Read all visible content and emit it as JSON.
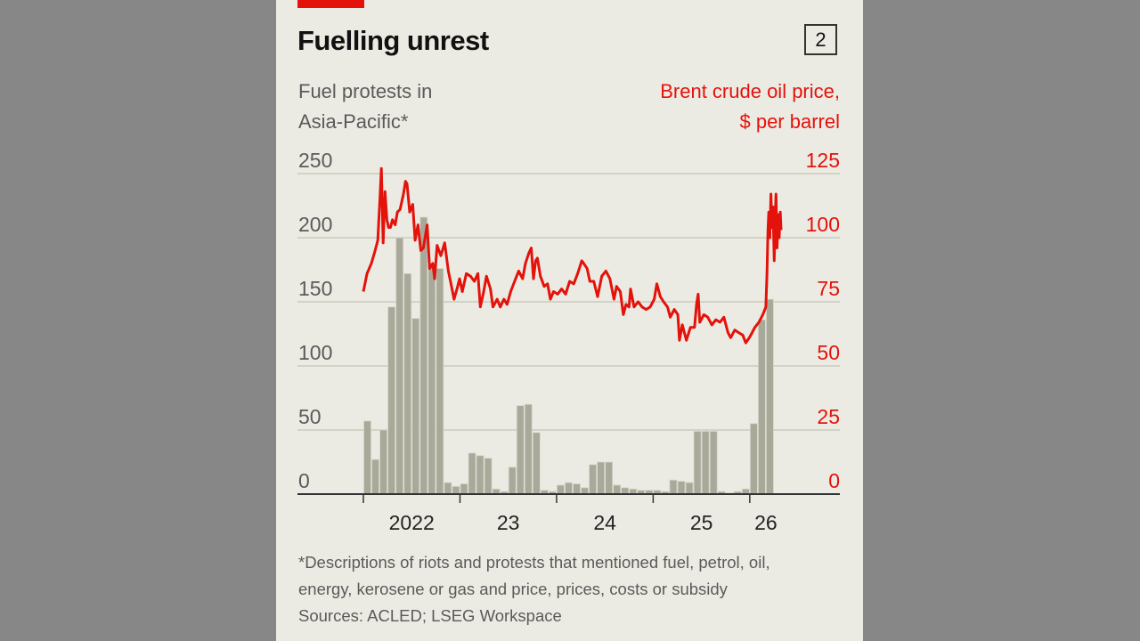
{
  "badge": "2",
  "colors": {
    "accent": "#e3120b",
    "bars": "#a9a99a",
    "bar_outline": "#d6d6cc",
    "grid": "#c9c9c0",
    "axis": "#333333",
    "background": "#ecebe3"
  },
  "chart_data": {
    "type": "bar+line",
    "title": "Fuelling unrest",
    "left_axis_label": [
      "Fuel protests in",
      "Asia-Pacific*"
    ],
    "right_axis_label": [
      "Brent crude oil price,",
      "$ per barrel"
    ],
    "left_ticks": [
      "250",
      "200",
      "150",
      "100",
      "50",
      "0"
    ],
    "right_ticks": [
      "125",
      "100",
      "75",
      "50",
      "25",
      "0"
    ],
    "left_ylim": [
      0,
      250
    ],
    "right_ylim": [
      0,
      125
    ],
    "x_ticks": [
      "2022",
      "23",
      "24",
      "25",
      "26"
    ],
    "x_range": [
      "2022-01",
      "2026-05"
    ],
    "grid": true,
    "series": [
      {
        "name": "Fuel protests in Asia-Pacific*",
        "axis": "left",
        "type": "bar",
        "color": "#a9a99a",
        "x": [
          "2022-01",
          "2022-02",
          "2022-03",
          "2022-04",
          "2022-05",
          "2022-06",
          "2022-07",
          "2022-08",
          "2022-09",
          "2022-10",
          "2022-11",
          "2022-12",
          "2023-01",
          "2023-02",
          "2023-03",
          "2023-04",
          "2023-05",
          "2023-06",
          "2023-07",
          "2023-08",
          "2023-09",
          "2023-10",
          "2023-11",
          "2023-12",
          "2024-01",
          "2024-02",
          "2024-03",
          "2024-04",
          "2024-05",
          "2024-06",
          "2024-07",
          "2024-08",
          "2024-09",
          "2024-10",
          "2024-11",
          "2024-12",
          "2025-01",
          "2025-02",
          "2025-03",
          "2025-04",
          "2025-05",
          "2025-06",
          "2025-07",
          "2025-08",
          "2025-09",
          "2025-10",
          "2025-11",
          "2025-12",
          "2026-01",
          "2026-02",
          "2026-03",
          "2026-04"
        ],
        "values": [
          57,
          27,
          50,
          146,
          200,
          172,
          137,
          216,
          178,
          176,
          9,
          6,
          8,
          32,
          30,
          28,
          4,
          2,
          21,
          69,
          70,
          48,
          3,
          2,
          7,
          9,
          8,
          5,
          23,
          25,
          25,
          7,
          5,
          4,
          3,
          3,
          3,
          2,
          11,
          10,
          9,
          49,
          49,
          49,
          2,
          1,
          2,
          4,
          55,
          136,
          152,
          0
        ]
      },
      {
        "name": "Brent crude oil price, $ per barrel",
        "axis": "right",
        "type": "line",
        "color": "#e3120b",
        "points": [
          [
            "2022-01-01",
            79
          ],
          [
            "2022-01-15",
            86
          ],
          [
            "2022-02-01",
            90
          ],
          [
            "2022-02-15",
            95
          ],
          [
            "2022-02-25",
            99
          ],
          [
            "2022-03-04",
            118
          ],
          [
            "2022-03-08",
            127
          ],
          [
            "2022-03-15",
            98
          ],
          [
            "2022-03-22",
            118
          ],
          [
            "2022-03-29",
            107
          ],
          [
            "2022-04-05",
            104
          ],
          [
            "2022-04-12",
            104
          ],
          [
            "2022-04-20",
            107
          ],
          [
            "2022-04-30",
            105
          ],
          [
            "2022-05-08",
            110
          ],
          [
            "2022-05-18",
            111
          ],
          [
            "2022-05-31",
            117
          ],
          [
            "2022-06-08",
            122
          ],
          [
            "2022-06-14",
            121
          ],
          [
            "2022-06-24",
            110
          ],
          [
            "2022-07-05",
            113
          ],
          [
            "2022-07-14",
            99
          ],
          [
            "2022-07-25",
            105
          ],
          [
            "2022-08-05",
            95
          ],
          [
            "2022-08-15",
            96
          ],
          [
            "2022-08-29",
            105
          ],
          [
            "2022-09-08",
            88
          ],
          [
            "2022-09-20",
            90
          ],
          [
            "2022-09-27",
            84
          ],
          [
            "2022-10-06",
            97
          ],
          [
            "2022-10-20",
            93
          ],
          [
            "2022-11-04",
            98
          ],
          [
            "2022-11-18",
            87
          ],
          [
            "2022-11-28",
            82
          ],
          [
            "2022-12-09",
            76
          ],
          [
            "2022-12-20",
            80
          ],
          [
            "2022-12-30",
            84
          ],
          [
            "2023-01-10",
            79
          ],
          [
            "2023-01-25",
            86
          ],
          [
            "2023-02-10",
            85
          ],
          [
            "2023-02-25",
            83
          ],
          [
            "2023-03-08",
            86
          ],
          [
            "2023-03-17",
            73
          ],
          [
            "2023-03-30",
            79
          ],
          [
            "2023-04-10",
            85
          ],
          [
            "2023-04-25",
            80
          ],
          [
            "2023-05-04",
            73
          ],
          [
            "2023-05-20",
            76
          ],
          [
            "2023-06-01",
            73
          ],
          [
            "2023-06-15",
            76
          ],
          [
            "2023-06-27",
            74
          ],
          [
            "2023-07-10",
            79
          ],
          [
            "2023-07-25",
            83
          ],
          [
            "2023-08-10",
            87
          ],
          [
            "2023-08-25",
            84
          ],
          [
            "2023-09-05",
            90
          ],
          [
            "2023-09-18",
            94
          ],
          [
            "2023-09-27",
            96
          ],
          [
            "2023-10-05",
            84
          ],
          [
            "2023-10-13",
            91
          ],
          [
            "2023-10-20",
            92
          ],
          [
            "2023-11-01",
            85
          ],
          [
            "2023-11-15",
            81
          ],
          [
            "2023-11-28",
            82
          ],
          [
            "2023-12-08",
            76
          ],
          [
            "2023-12-20",
            79
          ],
          [
            "2024-01-05",
            78
          ],
          [
            "2024-01-20",
            80
          ],
          [
            "2024-02-05",
            78
          ],
          [
            "2024-02-20",
            83
          ],
          [
            "2024-03-05",
            82
          ],
          [
            "2024-03-20",
            86
          ],
          [
            "2024-04-05",
            91
          ],
          [
            "2024-04-12",
            90
          ],
          [
            "2024-04-25",
            88
          ],
          [
            "2024-05-05",
            83
          ],
          [
            "2024-05-20",
            83
          ],
          [
            "2024-06-04",
            77
          ],
          [
            "2024-06-20",
            85
          ],
          [
            "2024-07-05",
            87
          ],
          [
            "2024-07-20",
            84
          ],
          [
            "2024-08-05",
            76
          ],
          [
            "2024-08-15",
            81
          ],
          [
            "2024-08-29",
            79
          ],
          [
            "2024-09-10",
            70
          ],
          [
            "2024-09-20",
            74
          ],
          [
            "2024-10-01",
            73
          ],
          [
            "2024-10-07",
            80
          ],
          [
            "2024-10-20",
            73
          ],
          [
            "2024-11-05",
            75
          ],
          [
            "2024-11-20",
            73
          ],
          [
            "2024-12-05",
            72
          ],
          [
            "2024-12-20",
            73
          ],
          [
            "2025-01-05",
            76
          ],
          [
            "2025-01-15",
            82
          ],
          [
            "2025-01-28",
            77
          ],
          [
            "2025-02-10",
            75
          ],
          [
            "2025-02-25",
            73
          ],
          [
            "2025-03-05",
            69
          ],
          [
            "2025-03-20",
            72
          ],
          [
            "2025-04-03",
            70
          ],
          [
            "2025-04-09",
            60
          ],
          [
            "2025-04-20",
            66
          ],
          [
            "2025-05-05",
            60
          ],
          [
            "2025-05-20",
            65
          ],
          [
            "2025-06-05",
            65
          ],
          [
            "2025-06-13",
            74
          ],
          [
            "2025-06-19",
            78
          ],
          [
            "2025-06-25",
            67
          ],
          [
            "2025-07-10",
            70
          ],
          [
            "2025-07-25",
            69
          ],
          [
            "2025-08-10",
            66
          ],
          [
            "2025-08-25",
            68
          ],
          [
            "2025-09-10",
            67
          ],
          [
            "2025-09-25",
            69
          ],
          [
            "2025-10-10",
            63
          ],
          [
            "2025-10-20",
            61
          ],
          [
            "2025-11-05",
            64
          ],
          [
            "2025-11-20",
            63
          ],
          [
            "2025-12-05",
            62
          ],
          [
            "2025-12-16",
            59
          ],
          [
            "2025-12-30",
            61
          ],
          [
            "2026-01-10",
            63
          ],
          [
            "2026-01-20",
            65
          ],
          [
            "2026-02-05",
            67
          ],
          [
            "2026-02-20",
            70
          ],
          [
            "2026-03-01",
            73
          ],
          [
            "2026-03-05",
            85
          ],
          [
            "2026-03-09",
            103
          ],
          [
            "2026-03-12",
            110
          ],
          [
            "2026-03-16",
            100
          ],
          [
            "2026-03-20",
            117
          ],
          [
            "2026-03-24",
            104
          ],
          [
            "2026-03-28",
            112
          ],
          [
            "2026-04-02",
            91
          ],
          [
            "2026-04-06",
            108
          ],
          [
            "2026-04-09",
            117
          ],
          [
            "2026-04-13",
            96
          ],
          [
            "2026-04-17",
            109
          ],
          [
            "2026-04-21",
            100
          ],
          [
            "2026-04-25",
            110
          ],
          [
            "2026-04-28",
            103
          ]
        ]
      }
    ]
  },
  "footnote": [
    "*Descriptions of riots and protests that mentioned fuel, petrol, oil,",
    "energy, kerosene or gas and price, prices, costs or subsidy",
    "Sources: ACLED; LSEG Workspace"
  ]
}
